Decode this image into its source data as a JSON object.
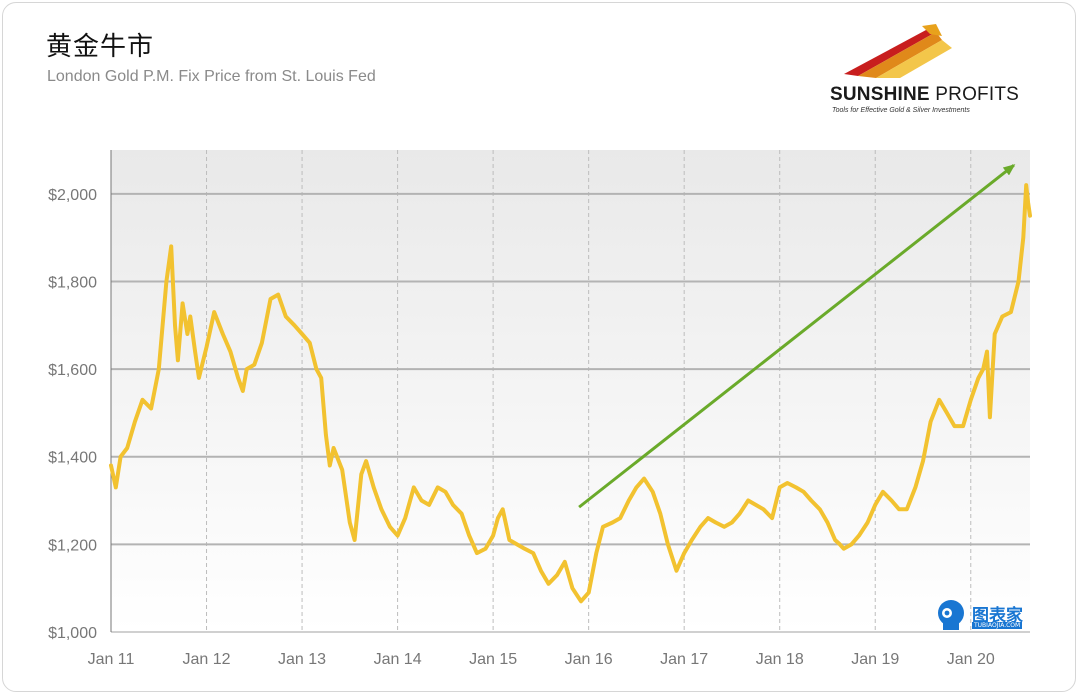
{
  "title": "黄金牛市",
  "subtitle": "London Gold P.M. Fix Price from St. Louis Fed",
  "logo": {
    "name_bold": "SUNSHINE",
    "name_light": "PROFITS",
    "tagline": "Tools for Effective Gold & Silver Investments"
  },
  "watermark": {
    "text": "图表家",
    "sub": "TUBIAOJIA.COM"
  },
  "colors": {
    "line": "#f2c230",
    "arrow": "#6aaa2a",
    "grid_major": "#b3b3b3",
    "grid_minor": "#bdbdbd",
    "plot_top": "#e9e9e9",
    "plot_bottom": "#ffffff"
  },
  "chart_data": {
    "type": "line",
    "title": "黄金牛市",
    "subtitle": "London Gold P.M. Fix Price from St. Louis Fed",
    "xlabel": "",
    "ylabel": "",
    "xlim": [
      2011.0,
      2020.62
    ],
    "ylim": [
      1000,
      2100
    ],
    "y_ticks": [
      1000,
      1200,
      1400,
      1600,
      1800,
      2000
    ],
    "y_tick_labels": [
      "$1,000",
      "$1,200",
      "$1,400",
      "$1,600",
      "$1,800",
      "$2,000"
    ],
    "x_ticks": [
      2011,
      2012,
      2013,
      2014,
      2015,
      2016,
      2017,
      2018,
      2019,
      2020
    ],
    "x_tick_labels": [
      "Jan 11",
      "Jan 12",
      "Jan 13",
      "Jan 14",
      "Jan 15",
      "Jan 16",
      "Jan 17",
      "Jan 18",
      "Jan 19",
      "Jan 20"
    ],
    "series": [
      {
        "name": "London Gold P.M. Fix",
        "x": [
          2011.0,
          2011.05,
          2011.1,
          2011.17,
          2011.25,
          2011.33,
          2011.42,
          2011.5,
          2011.58,
          2011.63,
          2011.67,
          2011.7,
          2011.75,
          2011.8,
          2011.83,
          2011.88,
          2011.92,
          2012.0,
          2012.08,
          2012.17,
          2012.25,
          2012.33,
          2012.38,
          2012.42,
          2012.5,
          2012.58,
          2012.67,
          2012.75,
          2012.83,
          2012.92,
          2013.0,
          2013.08,
          2013.15,
          2013.2,
          2013.25,
          2013.29,
          2013.33,
          2013.42,
          2013.5,
          2013.55,
          2013.62,
          2013.67,
          2013.75,
          2013.83,
          2013.92,
          2014.0,
          2014.08,
          2014.17,
          2014.25,
          2014.33,
          2014.42,
          2014.5,
          2014.58,
          2014.67,
          2014.75,
          2014.83,
          2014.92,
          2015.0,
          2015.05,
          2015.1,
          2015.17,
          2015.25,
          2015.33,
          2015.42,
          2015.5,
          2015.58,
          2015.67,
          2015.75,
          2015.83,
          2015.92,
          2016.0,
          2016.08,
          2016.15,
          2016.25,
          2016.33,
          2016.42,
          2016.5,
          2016.58,
          2016.67,
          2016.75,
          2016.83,
          2016.92,
          2017.0,
          2017.08,
          2017.17,
          2017.25,
          2017.33,
          2017.42,
          2017.5,
          2017.58,
          2017.67,
          2017.75,
          2017.83,
          2017.92,
          2018.0,
          2018.08,
          2018.17,
          2018.25,
          2018.33,
          2018.42,
          2018.5,
          2018.58,
          2018.63,
          2018.67,
          2018.75,
          2018.83,
          2018.92,
          2019.0,
          2019.08,
          2019.17,
          2019.25,
          2019.33,
          2019.42,
          2019.5,
          2019.58,
          2019.67,
          2019.75,
          2019.83,
          2019.92,
          2020.0,
          2020.08,
          2020.13,
          2020.17,
          2020.2,
          2020.25,
          2020.33,
          2020.42,
          2020.5,
          2020.55,
          2020.58,
          2020.6,
          2020.62
        ],
        "values": [
          1380,
          1330,
          1400,
          1420,
          1480,
          1530,
          1510,
          1600,
          1800,
          1880,
          1700,
          1620,
          1750,
          1680,
          1720,
          1640,
          1580,
          1650,
          1730,
          1680,
          1640,
          1580,
          1550,
          1600,
          1610,
          1660,
          1760,
          1770,
          1720,
          1700,
          1680,
          1660,
          1600,
          1580,
          1450,
          1380,
          1420,
          1370,
          1250,
          1210,
          1360,
          1390,
          1330,
          1280,
          1240,
          1220,
          1260,
          1330,
          1300,
          1290,
          1330,
          1320,
          1290,
          1270,
          1220,
          1180,
          1190,
          1220,
          1260,
          1280,
          1210,
          1200,
          1190,
          1180,
          1140,
          1110,
          1130,
          1160,
          1100,
          1070,
          1090,
          1180,
          1240,
          1250,
          1260,
          1300,
          1330,
          1350,
          1320,
          1270,
          1200,
          1140,
          1180,
          1210,
          1240,
          1260,
          1250,
          1240,
          1250,
          1270,
          1300,
          1290,
          1280,
          1260,
          1330,
          1340,
          1330,
          1320,
          1300,
          1280,
          1250,
          1210,
          1200,
          1190,
          1200,
          1220,
          1250,
          1290,
          1320,
          1300,
          1280,
          1280,
          1330,
          1390,
          1480,
          1530,
          1500,
          1470,
          1470,
          1530,
          1580,
          1600,
          1640,
          1490,
          1680,
          1720,
          1730,
          1800,
          1900,
          2020,
          1980,
          1950
        ]
      }
    ],
    "annotations": [
      {
        "type": "arrow",
        "from": [
          2015.9,
          1285
        ],
        "to": [
          2020.45,
          2065
        ],
        "label": ""
      }
    ]
  }
}
